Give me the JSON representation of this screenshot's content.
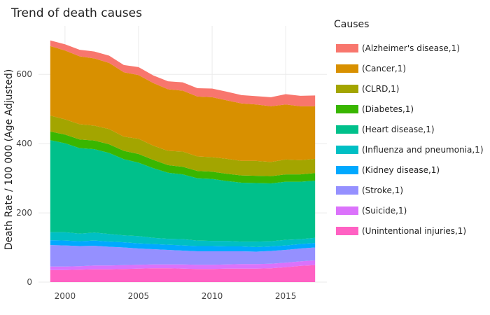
{
  "chart_data": {
    "type": "area",
    "stacked": true,
    "title": "Trend of death causes",
    "xlabel": "",
    "ylabel": "Death Rate / 100 000 (Age Adjusted)",
    "x": [
      1999,
      2000,
      2001,
      2002,
      2003,
      2004,
      2005,
      2006,
      2007,
      2008,
      2009,
      2010,
      2011,
      2012,
      2013,
      2014,
      2015,
      2016,
      2017
    ],
    "xlim": [
      1998.2,
      2017.8
    ],
    "ylim": [
      0,
      740
    ],
    "x_ticks": [
      2000,
      2005,
      2010,
      2015
    ],
    "y_ticks": [
      0,
      200,
      400,
      600
    ],
    "grid": true,
    "legend_title": "Causes",
    "legend_position": "right",
    "series": [
      {
        "name": "(Unintentional injuries,1)",
        "color": "#FF61C3",
        "values": [
          35,
          35,
          36,
          37,
          37,
          38,
          39,
          40,
          40,
          39,
          38,
          38,
          39,
          39,
          39,
          40,
          43,
          47,
          49
        ]
      },
      {
        "name": "(Suicide,1)",
        "color": "#DB72FB",
        "values": [
          10,
          10,
          10,
          11,
          11,
          11,
          11,
          11,
          11,
          12,
          12,
          12,
          12,
          13,
          13,
          13,
          13,
          13,
          14
        ]
      },
      {
        "name": "(Stroke,1)",
        "color": "#9590FF",
        "values": [
          62,
          61,
          58,
          57,
          54,
          51,
          47,
          44,
          42,
          40,
          39,
          39,
          38,
          37,
          36,
          37,
          37,
          37,
          37
        ]
      },
      {
        "name": "(Kidney disease,1)",
        "color": "#00A9FF",
        "values": [
          14,
          14,
          14,
          15,
          15,
          15,
          15,
          15,
          15,
          15,
          15,
          15,
          14,
          14,
          13,
          13,
          13,
          13,
          13
        ]
      },
      {
        "name": "(Influenza and pneumonia,1)",
        "color": "#00BFC4",
        "values": [
          23,
          24,
          22,
          23,
          22,
          20,
          21,
          18,
          17,
          18,
          16,
          15,
          16,
          14,
          16,
          15,
          16,
          14,
          15
        ]
      },
      {
        "name": "(Heart disease,1)",
        "color": "#00C08B",
        "values": [
          266,
          257,
          247,
          241,
          234,
          220,
          212,
          201,
          191,
          187,
          180,
          179,
          173,
          170,
          169,
          167,
          168,
          166,
          165
        ]
      },
      {
        "name": "(Diabetes,1)",
        "color": "#39B600",
        "values": [
          25,
          25,
          25,
          25,
          25,
          24,
          25,
          24,
          22,
          22,
          21,
          21,
          21,
          21,
          21,
          21,
          21,
          21,
          22
        ]
      },
      {
        "name": "(CLRD,1)",
        "color": "#A3A500",
        "values": [
          46,
          44,
          44,
          43,
          44,
          41,
          44,
          41,
          41,
          44,
          42,
          42,
          43,
          42,
          43,
          41,
          43,
          41,
          41
        ]
      },
      {
        "name": "(Cancer,1)",
        "color": "#D89000",
        "values": [
          201,
          199,
          196,
          194,
          191,
          186,
          184,
          181,
          178,
          176,
          173,
          173,
          169,
          166,
          163,
          161,
          159,
          156,
          152
        ]
      },
      {
        "name": "(Alzheimer's disease,1)",
        "color": "#F8766D",
        "values": [
          16,
          18,
          19,
          20,
          21,
          21,
          23,
          22,
          23,
          24,
          24,
          25,
          25,
          24,
          24,
          26,
          30,
          30,
          31
        ]
      }
    ]
  }
}
